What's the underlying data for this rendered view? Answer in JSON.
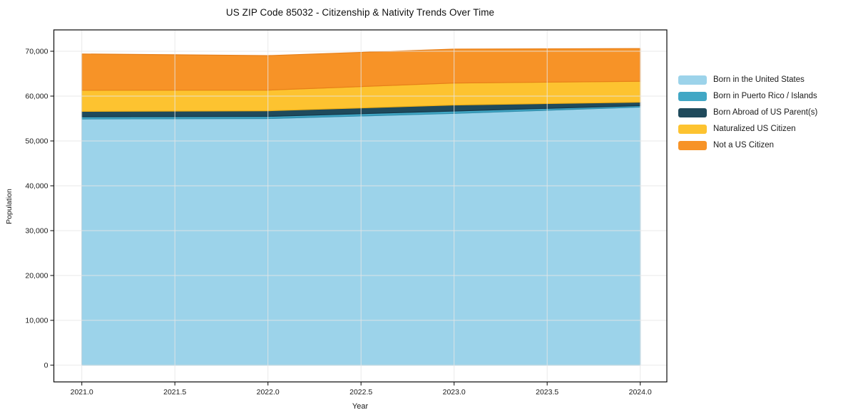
{
  "title": "US ZIP Code 85032 - Citizenship & Nativity Trends Over Time",
  "axes": {
    "xlabel": "Year",
    "ylabel": "Population",
    "x_ticks": [
      "2021.0",
      "2021.5",
      "2022.0",
      "2022.5",
      "2023.0",
      "2023.5",
      "2024.0"
    ],
    "y_ticks": [
      "0",
      "10,000",
      "20,000",
      "30,000",
      "40,000",
      "50,000",
      "60,000",
      "70,000"
    ]
  },
  "chart_data": {
    "type": "area",
    "stacked": true,
    "title": "US ZIP Code 85032 - Citizenship & Nativity Trends Over Time",
    "xlabel": "Year",
    "ylabel": "Population",
    "x": [
      2021,
      2022,
      2023,
      2024
    ],
    "series": [
      {
        "name": "Born in the United States",
        "color": "#9CD3EA",
        "edge": "#74B8D8",
        "values": [
          54900,
          55000,
          56150,
          57550
        ]
      },
      {
        "name": "Born in Puerto Rico / Islands",
        "color": "#41A7C5",
        "edge": "#328FAD",
        "values": [
          500,
          480,
          520,
          330
        ]
      },
      {
        "name": "Born Abroad of US Parent(s)",
        "color": "#1F4A5C",
        "edge": "#16384A",
        "values": [
          1200,
          1250,
          1350,
          770
        ]
      },
      {
        "name": "Naturalized US Citizen",
        "color": "#FDC330",
        "edge": "#F0AF14",
        "values": [
          4700,
          4600,
          4900,
          4650
        ]
      },
      {
        "name": "Not a US Citizen",
        "color": "#F79327",
        "edge": "#E8801A",
        "values": [
          8100,
          7700,
          7550,
          7300
        ]
      }
    ],
    "totals_by_year": [
      69400,
      69030,
      70470,
      70600
    ],
    "xlim": [
      2020.85,
      2024.15
    ],
    "ylim": [
      -3700,
      74800
    ],
    "grid": true,
    "legend_position": "right-outside"
  },
  "legend": {
    "items": [
      "Born in the United States",
      "Born in Puerto Rico / Islands",
      "Born Abroad of US Parent(s)",
      "Naturalized US Citizen",
      "Not a US Citizen"
    ]
  }
}
